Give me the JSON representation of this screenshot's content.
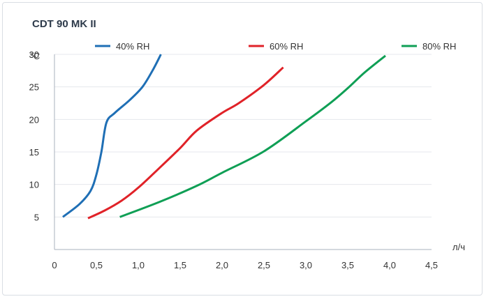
{
  "chart_data": {
    "type": "line",
    "title": "CDT 90 MK II",
    "xlabel": "л/ч",
    "ylabel": "°C",
    "xlim": [
      0,
      4.5
    ],
    "ylim": [
      0,
      30
    ],
    "grid": "horizontal",
    "legend_placement": "top",
    "x_ticks": [
      "0",
      "0,5",
      "1,0",
      "1,5",
      "2,0",
      "2,5",
      "3,0",
      "3,5",
      "4,0",
      "4,5"
    ],
    "x_tick_values": [
      0,
      0.5,
      1.0,
      1.5,
      2.0,
      2.5,
      3.0,
      3.5,
      4.0,
      4.5
    ],
    "y_ticks": [
      "5",
      "10",
      "15",
      "20",
      "25",
      "30"
    ],
    "y_tick_values": [
      5,
      10,
      15,
      20,
      25,
      30
    ],
    "series": [
      {
        "name": "40% RH",
        "color": "#1f6fb5",
        "points": [
          [
            0.1,
            5
          ],
          [
            0.3,
            7
          ],
          [
            0.43,
            9
          ],
          [
            0.5,
            11.5
          ],
          [
            0.56,
            15
          ],
          [
            0.62,
            19.5
          ],
          [
            0.72,
            21
          ],
          [
            0.9,
            23
          ],
          [
            1.05,
            25
          ],
          [
            1.17,
            27.5
          ],
          [
            1.27,
            30
          ]
        ]
      },
      {
        "name": "60% RH",
        "color": "#e02228",
        "points": [
          [
            0.4,
            4.8
          ],
          [
            0.6,
            6
          ],
          [
            0.8,
            7.5
          ],
          [
            1.0,
            9.5
          ],
          [
            1.25,
            12.5
          ],
          [
            1.5,
            15.6
          ],
          [
            1.7,
            18.3
          ],
          [
            2.0,
            21
          ],
          [
            2.2,
            22.5
          ],
          [
            2.5,
            25.3
          ],
          [
            2.73,
            28
          ]
        ]
      },
      {
        "name": "80% RH",
        "color": "#0f9f55",
        "points": [
          [
            0.78,
            5
          ],
          [
            1.25,
            7.3
          ],
          [
            1.7,
            9.8
          ],
          [
            2.0,
            11.8
          ],
          [
            2.5,
            15.1
          ],
          [
            3.0,
            19.7
          ],
          [
            3.3,
            22.6
          ],
          [
            3.5,
            24.8
          ],
          [
            3.7,
            27.2
          ],
          [
            3.95,
            29.8
          ]
        ]
      }
    ]
  }
}
